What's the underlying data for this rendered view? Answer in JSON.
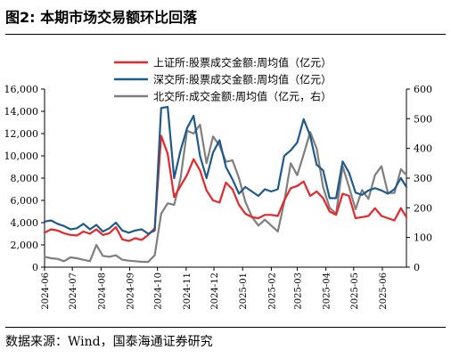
{
  "figure": {
    "title": "图2:  本期市场交易额环比回落",
    "source": "数据来源：Wind，国泰海通证券研究"
  },
  "chart_data": {
    "type": "line",
    "x_tick_labels": [
      "2024-06",
      "2024-07",
      "2024-08",
      "2024-09",
      "2024-10",
      "2024-11",
      "2024-12",
      "2025-01",
      "2025-02",
      "2025-03",
      "2025-04",
      "2025-05",
      "2025-06"
    ],
    "x_range_months": [
      "2024-06-01",
      "2025-06-27"
    ],
    "y_left_ticks": [
      "0",
      "2,000",
      "4,000",
      "6,000",
      "8,000",
      "10,000",
      "12,000",
      "14,000",
      "16,000"
    ],
    "y_left_lim": [
      0,
      16000
    ],
    "y_right_ticks": [
      "0",
      "100",
      "200",
      "300",
      "400",
      "500",
      "600"
    ],
    "y_right_lim": [
      0,
      600
    ],
    "grid": false,
    "legend_position": "top",
    "series": [
      {
        "name": "上证所:股票成交金额:周均值（亿元）",
        "axis": "left",
        "color": "#e8262b",
        "dates": [
          "2024-06-01",
          "2024-06-08",
          "2024-06-15",
          "2024-06-22",
          "2024-06-29",
          "2024-07-06",
          "2024-07-13",
          "2024-07-20",
          "2024-07-27",
          "2024-08-03",
          "2024-08-10",
          "2024-08-17",
          "2024-08-24",
          "2024-08-31",
          "2024-09-07",
          "2024-09-14",
          "2024-09-21",
          "2024-09-28",
          "2024-10-05",
          "2024-10-12",
          "2024-10-19",
          "2024-10-26",
          "2024-11-02",
          "2024-11-09",
          "2024-11-16",
          "2024-11-23",
          "2024-11-30",
          "2024-12-07",
          "2024-12-14",
          "2024-12-21",
          "2024-12-28",
          "2025-01-04",
          "2025-01-11",
          "2025-01-18",
          "2025-01-25",
          "2025-02-01",
          "2025-02-08",
          "2025-02-15",
          "2025-02-22",
          "2025-03-01",
          "2025-03-08",
          "2025-03-15",
          "2025-03-22",
          "2025-03-29",
          "2025-04-05",
          "2025-04-12",
          "2025-04-19",
          "2025-04-26",
          "2025-05-03",
          "2025-05-10",
          "2025-05-17",
          "2025-05-24",
          "2025-05-31",
          "2025-06-07",
          "2025-06-14",
          "2025-06-21",
          "2025-06-27"
        ],
        "values": [
          3100,
          3400,
          3300,
          3050,
          2900,
          2850,
          3200,
          3000,
          3400,
          2900,
          3050,
          3600,
          2500,
          2350,
          2600,
          2450,
          2900,
          3500,
          11800,
          10200,
          6300,
          7300,
          8300,
          9700,
          8700,
          6900,
          6000,
          5800,
          7600,
          7000,
          5600,
          4800,
          4500,
          4400,
          4700,
          4700,
          4600,
          6000,
          7100,
          7300,
          7700,
          6400,
          6800,
          6200,
          5000,
          4700,
          6600,
          6400,
          4400,
          4500,
          4600,
          5300,
          4600,
          4400,
          4200,
          5300,
          4500
        ]
      },
      {
        "name": "深交所:股票成交金额:周均值（亿元）",
        "axis": "left",
        "color": "#1f5a8c",
        "dates": [
          "2024-06-01",
          "2024-06-08",
          "2024-06-15",
          "2024-06-22",
          "2024-06-29",
          "2024-07-06",
          "2024-07-13",
          "2024-07-20",
          "2024-07-27",
          "2024-08-03",
          "2024-08-10",
          "2024-08-17",
          "2024-08-24",
          "2024-08-31",
          "2024-09-07",
          "2024-09-14",
          "2024-09-21",
          "2024-09-28",
          "2024-10-05",
          "2024-10-12",
          "2024-10-19",
          "2024-10-26",
          "2024-11-02",
          "2024-11-09",
          "2024-11-16",
          "2024-11-23",
          "2024-11-30",
          "2024-12-07",
          "2024-12-14",
          "2024-12-21",
          "2024-12-28",
          "2025-01-04",
          "2025-01-11",
          "2025-01-18",
          "2025-01-25",
          "2025-02-01",
          "2025-02-08",
          "2025-02-15",
          "2025-02-22",
          "2025-03-01",
          "2025-03-08",
          "2025-03-15",
          "2025-03-22",
          "2025-03-29",
          "2025-04-05",
          "2025-04-12",
          "2025-04-19",
          "2025-04-26",
          "2025-05-03",
          "2025-05-10",
          "2025-05-17",
          "2025-05-24",
          "2025-05-31",
          "2025-06-07",
          "2025-06-14",
          "2025-06-21",
          "2025-06-27"
        ],
        "values": [
          4100,
          4200,
          3900,
          3700,
          3400,
          3500,
          3900,
          3400,
          3800,
          3200,
          3500,
          4000,
          3300,
          3100,
          3300,
          3400,
          3000,
          3300,
          14300,
          14400,
          8000,
          10500,
          12500,
          13600,
          10000,
          8000,
          10300,
          11400,
          9000,
          7900,
          6600,
          7200,
          6800,
          6400,
          7000,
          6800,
          7000,
          10000,
          10500,
          11200,
          13300,
          11800,
          9200,
          8700,
          6200,
          6200,
          9500,
          8500,
          6700,
          6500,
          6900,
          7100,
          6900,
          6600,
          7000,
          8000,
          7200
        ]
      },
      {
        "name": "北交所:成交金额:周均值（亿元，右）",
        "axis": "right",
        "color": "#7f7f7f",
        "dates": [
          "2024-06-01",
          "2024-06-08",
          "2024-06-15",
          "2024-06-22",
          "2024-06-29",
          "2024-07-06",
          "2024-07-13",
          "2024-07-20",
          "2024-07-27",
          "2024-08-03",
          "2024-08-10",
          "2024-08-17",
          "2024-08-24",
          "2024-08-31",
          "2024-09-07",
          "2024-09-14",
          "2024-09-21",
          "2024-09-28",
          "2024-10-05",
          "2024-10-12",
          "2024-10-19",
          "2024-10-26",
          "2024-11-02",
          "2024-11-09",
          "2024-11-16",
          "2024-11-23",
          "2024-11-30",
          "2024-12-07",
          "2024-12-14",
          "2024-12-21",
          "2024-12-28",
          "2025-01-04",
          "2025-01-11",
          "2025-01-18",
          "2025-01-25",
          "2025-02-01",
          "2025-02-08",
          "2025-02-15",
          "2025-02-22",
          "2025-03-01",
          "2025-03-08",
          "2025-03-15",
          "2025-03-22",
          "2025-03-29",
          "2025-04-05",
          "2025-04-12",
          "2025-04-19",
          "2025-04-26",
          "2025-05-03",
          "2025-05-10",
          "2025-05-17",
          "2025-05-24",
          "2025-05-31",
          "2025-06-07",
          "2025-06-14",
          "2025-06-21",
          "2025-06-27"
        ],
        "values": [
          35,
          30,
          28,
          20,
          33,
          30,
          25,
          20,
          75,
          38,
          35,
          40,
          25,
          22,
          20,
          18,
          18,
          40,
          180,
          215,
          210,
          300,
          460,
          450,
          480,
          350,
          440,
          410,
          355,
          360,
          300,
          220,
          170,
          140,
          160,
          140,
          120,
          220,
          350,
          310,
          380,
          455,
          400,
          270,
          200,
          180,
          340,
          270,
          195,
          260,
          230,
          310,
          340,
          250,
          250,
          330,
          310
        ]
      }
    ]
  }
}
